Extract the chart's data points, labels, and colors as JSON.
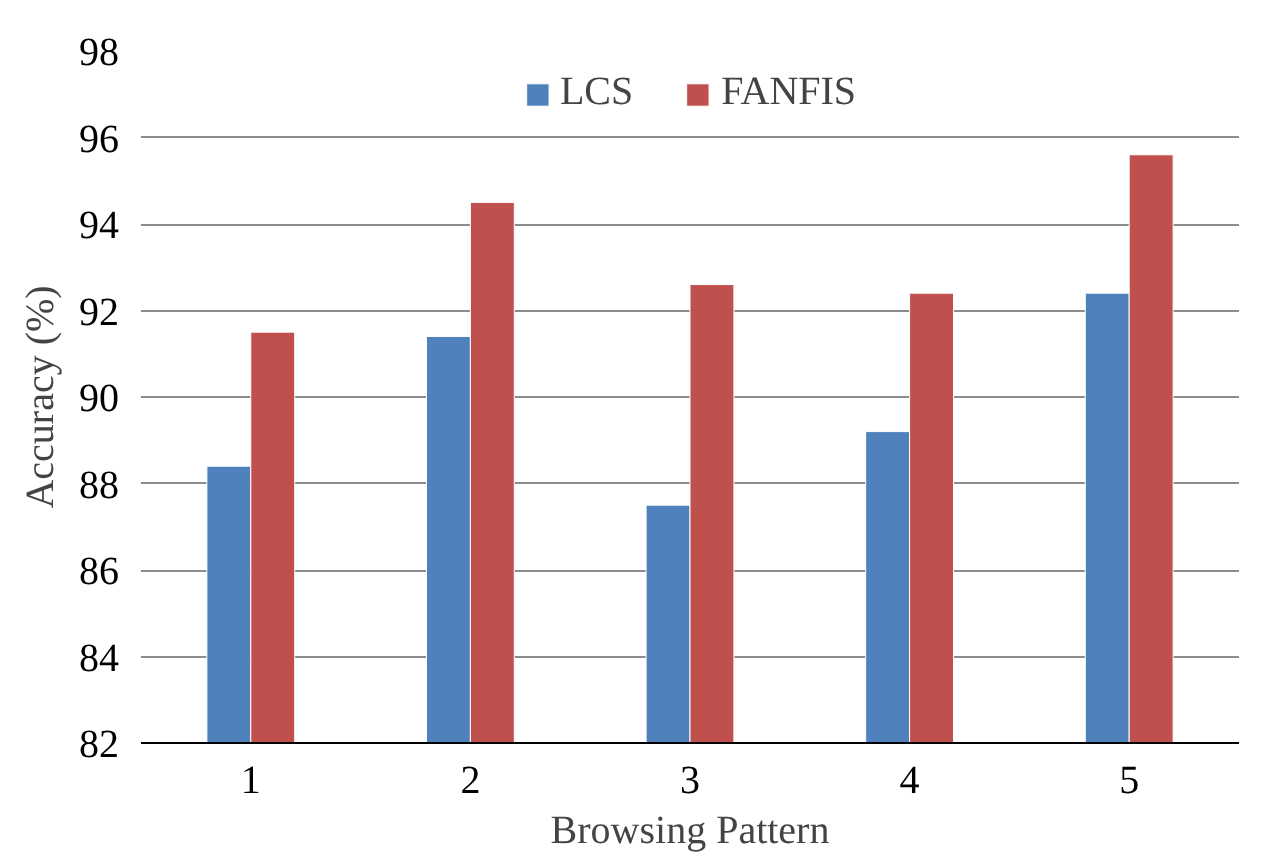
{
  "chart_data": {
    "type": "bar",
    "xlabel": "Browsing Pattern",
    "ylabel": "Accuracy (%)",
    "categories": [
      "1",
      "2",
      "3",
      "4",
      "5"
    ],
    "series": [
      {
        "name": "LCS",
        "color": "#4f81bd",
        "values": [
          88.4,
          91.4,
          87.5,
          89.2,
          92.4
        ]
      },
      {
        "name": "FANFIS",
        "color": "#c0504d",
        "values": [
          91.5,
          94.5,
          92.6,
          92.4,
          95.6
        ]
      }
    ],
    "ylim": [
      82,
      98
    ],
    "yticks": [
      82,
      84,
      86,
      88,
      90,
      92,
      94,
      96,
      98
    ],
    "grid": "y",
    "legend": "top"
  }
}
